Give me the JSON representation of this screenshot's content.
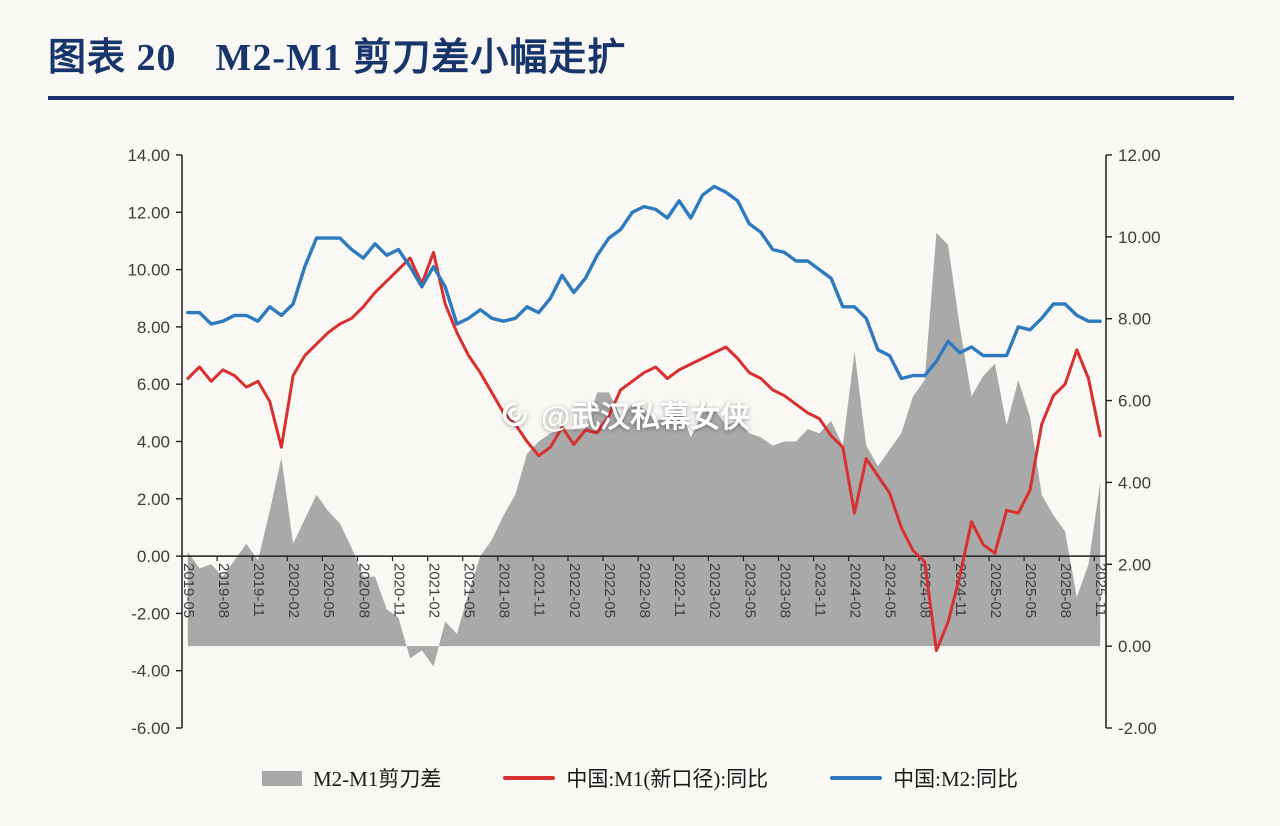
{
  "page": {
    "title": "图表 20　M2-M1 剪刀差小幅走扩",
    "watermark": "@武汉私幕女侠"
  },
  "legend": [
    {
      "label": "M2-M1剪刀差",
      "type": "area",
      "color": "#a9a9a9"
    },
    {
      "label": "中国:M1(新口径):同比",
      "type": "line",
      "color": "#d83030"
    },
    {
      "label": "中国:M2:同比",
      "type": "line",
      "color": "#2e7abf"
    }
  ],
  "chart_data": {
    "type": "combo",
    "title": "图表 20　M2-M1 剪刀差小幅走扩",
    "x_tick_every": 3,
    "left_axis": {
      "min": -6,
      "max": 14,
      "step": 2
    },
    "right_axis": {
      "min": -2,
      "max": 12,
      "step": 2
    },
    "x": [
      "2019-05",
      "2019-06",
      "2019-07",
      "2019-08",
      "2019-09",
      "2019-10",
      "2019-11",
      "2019-12",
      "2020-01",
      "2020-02",
      "2020-03",
      "2020-04",
      "2020-05",
      "2020-06",
      "2020-07",
      "2020-08",
      "2020-09",
      "2020-10",
      "2020-11",
      "2020-12",
      "2021-01",
      "2021-02",
      "2021-03",
      "2021-04",
      "2021-05",
      "2021-06",
      "2021-07",
      "2021-08",
      "2021-09",
      "2021-10",
      "2021-11",
      "2021-12",
      "2022-01",
      "2022-02",
      "2022-03",
      "2022-04",
      "2022-05",
      "2022-06",
      "2022-07",
      "2022-08",
      "2022-09",
      "2022-10",
      "2022-11",
      "2022-12",
      "2023-01",
      "2023-02",
      "2023-03",
      "2023-04",
      "2023-05",
      "2023-06",
      "2023-07",
      "2023-08",
      "2023-09",
      "2023-10",
      "2023-11",
      "2023-12",
      "2024-01",
      "2024-02",
      "2024-03",
      "2024-04",
      "2024-05",
      "2024-06",
      "2024-07",
      "2024-08",
      "2024-09",
      "2024-10",
      "2024-11",
      "2024-12",
      "2025-01",
      "2025-02",
      "2025-03",
      "2025-04",
      "2025-05",
      "2025-06",
      "2025-07",
      "2025-08",
      "2025-09",
      "2025-10",
      "2025-11"
    ],
    "series": [
      {
        "name": "M2-M1剪刀差",
        "type": "area",
        "axis": "right",
        "color": "#a9a9a9",
        "values": [
          2.3,
          1.9,
          2.0,
          1.7,
          2.1,
          2.5,
          2.1,
          3.3,
          4.6,
          2.5,
          3.1,
          3.7,
          3.3,
          3.0,
          2.4,
          1.7,
          1.7,
          0.9,
          0.7,
          -0.3,
          -0.1,
          -0.5,
          0.6,
          0.3,
          1.3,
          2.2,
          2.6,
          3.2,
          3.7,
          4.7,
          5.0,
          5.2,
          5.3,
          5.3,
          5.3,
          6.2,
          6.2,
          5.6,
          5.9,
          5.8,
          5.5,
          5.6,
          5.9,
          5.1,
          5.7,
          5.8,
          5.4,
          5.5,
          5.2,
          5.1,
          4.9,
          5.0,
          5.0,
          5.3,
          5.2,
          5.5,
          4.9,
          7.2,
          4.9,
          4.4,
          4.8,
          5.2,
          6.1,
          6.5,
          10.1,
          9.8,
          7.8,
          6.1,
          6.6,
          6.9,
          5.4,
          6.5,
          5.6,
          3.7,
          3.2,
          2.8,
          1.2,
          2.0,
          4.0
        ]
      },
      {
        "name": "中国:M1(新口径):同比",
        "type": "line",
        "axis": "left",
        "color": "#d83030",
        "width": 3,
        "values": [
          6.2,
          6.6,
          6.1,
          6.5,
          6.3,
          5.9,
          6.1,
          5.4,
          3.8,
          6.3,
          7.0,
          7.4,
          7.8,
          8.1,
          8.3,
          8.7,
          9.2,
          9.6,
          10.0,
          10.4,
          9.5,
          10.6,
          8.8,
          7.8,
          7.0,
          6.4,
          5.7,
          5.0,
          4.6,
          4.0,
          3.5,
          3.8,
          4.5,
          3.9,
          4.4,
          4.3,
          4.9,
          5.8,
          6.1,
          6.4,
          6.6,
          6.2,
          6.5,
          6.7,
          6.9,
          7.1,
          7.3,
          6.9,
          6.4,
          6.2,
          5.8,
          5.6,
          5.3,
          5.0,
          4.8,
          4.2,
          3.8,
          1.5,
          3.4,
          2.8,
          2.2,
          1.0,
          0.2,
          -0.2,
          -3.3,
          -2.3,
          -0.7,
          1.2,
          0.4,
          0.1,
          1.6,
          1.5,
          2.3,
          4.6,
          5.6,
          6.0,
          7.2,
          6.2,
          4.2
        ]
      },
      {
        "name": "中国:M2:同比",
        "type": "line",
        "axis": "left",
        "color": "#2e7abf",
        "width": 3.4,
        "values": [
          8.5,
          8.5,
          8.1,
          8.2,
          8.4,
          8.4,
          8.2,
          8.7,
          8.4,
          8.8,
          10.1,
          11.1,
          11.1,
          11.1,
          10.7,
          10.4,
          10.9,
          10.5,
          10.7,
          10.1,
          9.4,
          10.1,
          9.4,
          8.1,
          8.3,
          8.6,
          8.3,
          8.2,
          8.3,
          8.7,
          8.5,
          9.0,
          9.8,
          9.2,
          9.7,
          10.5,
          11.1,
          11.4,
          12.0,
          12.2,
          12.1,
          11.8,
          12.4,
          11.8,
          12.6,
          12.9,
          12.7,
          12.4,
          11.6,
          11.3,
          10.7,
          10.6,
          10.3,
          10.3,
          10.0,
          9.7,
          8.7,
          8.7,
          8.3,
          7.2,
          7.0,
          6.2,
          6.3,
          6.3,
          6.8,
          7.5,
          7.1,
          7.3,
          7.0,
          7.0,
          7.0,
          8.0,
          7.9,
          8.3,
          8.8,
          8.8,
          8.4,
          8.2,
          8.2
        ]
      }
    ]
  }
}
